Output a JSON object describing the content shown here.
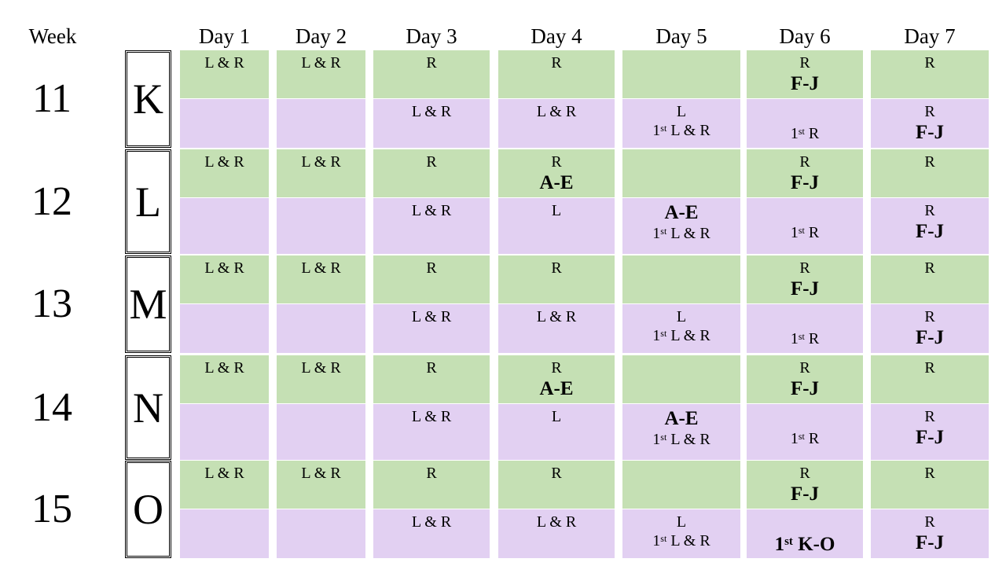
{
  "header": {
    "week_label": "Week",
    "days": [
      "Day 1",
      "Day 2",
      "Day 3",
      "Day 4",
      "Day 5",
      "Day 6",
      "Day 7"
    ]
  },
  "colors": {
    "top_row": "#c5e0b4",
    "bottom_row": "#e2d0f2"
  },
  "weeks": [
    {
      "number": "11",
      "letter": "K",
      "top": [
        {
          "t": "L & R",
          "b": ""
        },
        {
          "t": "L & R",
          "b": ""
        },
        {
          "t": "R",
          "b": ""
        },
        {
          "t": "R",
          "b": ""
        },
        {
          "t": "",
          "b": ""
        },
        {
          "t": "R",
          "b": "F-J"
        },
        {
          "t": "R",
          "b": ""
        }
      ],
      "bottom": [
        {
          "t": "",
          "b": "",
          "o": "",
          "r": ""
        },
        {
          "t": "",
          "b": "",
          "o": "",
          "r": ""
        },
        {
          "t": "L & R",
          "b": "",
          "o": "",
          "r": ""
        },
        {
          "t": "L & R",
          "b": "",
          "o": "",
          "r": ""
        },
        {
          "t": "L",
          "b": "",
          "o": "1",
          "r": "L & R"
        },
        {
          "t": "",
          "b": "",
          "o": "1",
          "r": "R"
        },
        {
          "t": "R",
          "b": "F-J",
          "o": "",
          "r": ""
        }
      ]
    },
    {
      "number": "12",
      "letter": "L",
      "top": [
        {
          "t": "L & R",
          "b": ""
        },
        {
          "t": "L & R",
          "b": ""
        },
        {
          "t": "R",
          "b": ""
        },
        {
          "t": "R",
          "b": "A-E"
        },
        {
          "t": "",
          "b": ""
        },
        {
          "t": "R",
          "b": "F-J"
        },
        {
          "t": "R",
          "b": ""
        }
      ],
      "bottom": [
        {
          "t": "",
          "b": "",
          "o": "",
          "r": ""
        },
        {
          "t": "",
          "b": "",
          "o": "",
          "r": ""
        },
        {
          "t": "L & R",
          "b": "",
          "o": "",
          "r": ""
        },
        {
          "t": "L",
          "b": "",
          "o": "",
          "r": ""
        },
        {
          "t": "",
          "b": "A-E",
          "o": "1",
          "r": "L & R"
        },
        {
          "t": "",
          "b": "",
          "o": "1",
          "r": "R"
        },
        {
          "t": "R",
          "b": "F-J",
          "o": "",
          "r": ""
        }
      ]
    },
    {
      "number": "13",
      "letter": "M",
      "top": [
        {
          "t": "L & R",
          "b": ""
        },
        {
          "t": "L & R",
          "b": ""
        },
        {
          "t": "R",
          "b": ""
        },
        {
          "t": "R",
          "b": ""
        },
        {
          "t": "",
          "b": ""
        },
        {
          "t": "R",
          "b": "F-J"
        },
        {
          "t": "R",
          "b": ""
        }
      ],
      "bottom": [
        {
          "t": "",
          "b": "",
          "o": "",
          "r": ""
        },
        {
          "t": "",
          "b": "",
          "o": "",
          "r": ""
        },
        {
          "t": "L & R",
          "b": "",
          "o": "",
          "r": ""
        },
        {
          "t": "L & R",
          "b": "",
          "o": "",
          "r": ""
        },
        {
          "t": "L",
          "b": "",
          "o": "1",
          "r": "L & R"
        },
        {
          "t": "",
          "b": "",
          "o": "1",
          "r": "R"
        },
        {
          "t": "R",
          "b": "F-J",
          "o": "",
          "r": ""
        }
      ]
    },
    {
      "number": "14",
      "letter": "N",
      "top": [
        {
          "t": "L & R",
          "b": ""
        },
        {
          "t": "L & R",
          "b": ""
        },
        {
          "t": "R",
          "b": ""
        },
        {
          "t": "R",
          "b": "A-E"
        },
        {
          "t": "",
          "b": ""
        },
        {
          "t": "R",
          "b": "F-J"
        },
        {
          "t": "R",
          "b": ""
        }
      ],
      "bottom": [
        {
          "t": "",
          "b": "",
          "o": "",
          "r": ""
        },
        {
          "t": "",
          "b": "",
          "o": "",
          "r": ""
        },
        {
          "t": "L & R",
          "b": "",
          "o": "",
          "r": ""
        },
        {
          "t": "L",
          "b": "",
          "o": "",
          "r": ""
        },
        {
          "t": "",
          "b": "A-E",
          "o": "1",
          "r": "L & R"
        },
        {
          "t": "",
          "b": "",
          "o": "1",
          "r": "R"
        },
        {
          "t": "R",
          "b": "F-J",
          "o": "",
          "r": ""
        }
      ]
    },
    {
      "number": "15",
      "letter": "O",
      "top": [
        {
          "t": "L & R",
          "b": ""
        },
        {
          "t": "L & R",
          "b": ""
        },
        {
          "t": "R",
          "b": ""
        },
        {
          "t": "R",
          "b": ""
        },
        {
          "t": "",
          "b": ""
        },
        {
          "t": "R",
          "b": "F-J"
        },
        {
          "t": "R",
          "b": ""
        }
      ],
      "bottom": [
        {
          "t": "",
          "b": "",
          "o": "",
          "r": ""
        },
        {
          "t": "",
          "b": "",
          "o": "",
          "r": ""
        },
        {
          "t": "L & R",
          "b": "",
          "o": "",
          "r": ""
        },
        {
          "t": "L & R",
          "b": "",
          "o": "",
          "r": ""
        },
        {
          "t": "L",
          "b": "",
          "o": "1",
          "r": "L & R"
        },
        {
          "t": "",
          "b": "",
          "o": "1",
          "r": "K-O",
          "bold": true
        },
        {
          "t": "R",
          "b": "F-J",
          "o": "",
          "r": ""
        }
      ]
    }
  ]
}
